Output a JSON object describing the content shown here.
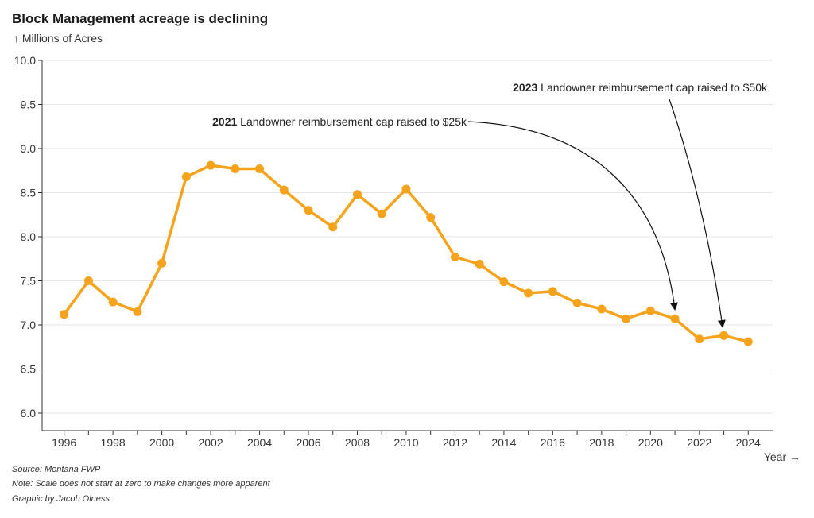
{
  "header": {
    "title": "Block Management acreage is declining",
    "y_unit": "↑ Millions of Acres"
  },
  "chart_data": {
    "type": "line",
    "title": "Block Management acreage is declining",
    "ylabel": "↑ Millions of Acres",
    "xlabel": "Year →",
    "ylim": [
      6.0,
      10.0
    ],
    "yticks": [
      "6.0",
      "6.5",
      "7.0",
      "7.5",
      "8.0",
      "8.5",
      "9.0",
      "9.5",
      "10.0"
    ],
    "xticks": [
      "1996",
      "1998",
      "2000",
      "2002",
      "2004",
      "2006",
      "2008",
      "2010",
      "2012",
      "2014",
      "2016",
      "2018",
      "2020",
      "2022",
      "2024"
    ],
    "grid": true,
    "line_color": "#f5a31c",
    "x": [
      1996,
      1997,
      1998,
      1999,
      2000,
      2001,
      2002,
      2003,
      2004,
      2005,
      2006,
      2007,
      2008,
      2009,
      2010,
      2011,
      2012,
      2013,
      2014,
      2015,
      2016,
      2017,
      2018,
      2019,
      2020,
      2021,
      2022,
      2023,
      2024
    ],
    "values": [
      7.12,
      7.5,
      7.26,
      7.15,
      7.7,
      8.68,
      8.81,
      8.77,
      8.77,
      8.53,
      8.3,
      8.11,
      8.48,
      8.26,
      8.54,
      8.22,
      7.77,
      7.69,
      7.49,
      7.36,
      7.38,
      7.25,
      7.18,
      7.07,
      7.16,
      7.07,
      6.84,
      6.88,
      6.81
    ],
    "annotations": [
      {
        "year_label": "2021",
        "text": "Landowner reimbursement cap raised to $25k",
        "target_x": 2021
      },
      {
        "year_label": "2023",
        "text": "Landowner reimbursement cap raised to $50k",
        "target_x": 2023
      }
    ]
  },
  "footer": {
    "source": "Source: Montana FWP",
    "note": "Note: Scale does not start at zero to make changes more apparent",
    "credit": "Graphic by Jacob Olness"
  }
}
